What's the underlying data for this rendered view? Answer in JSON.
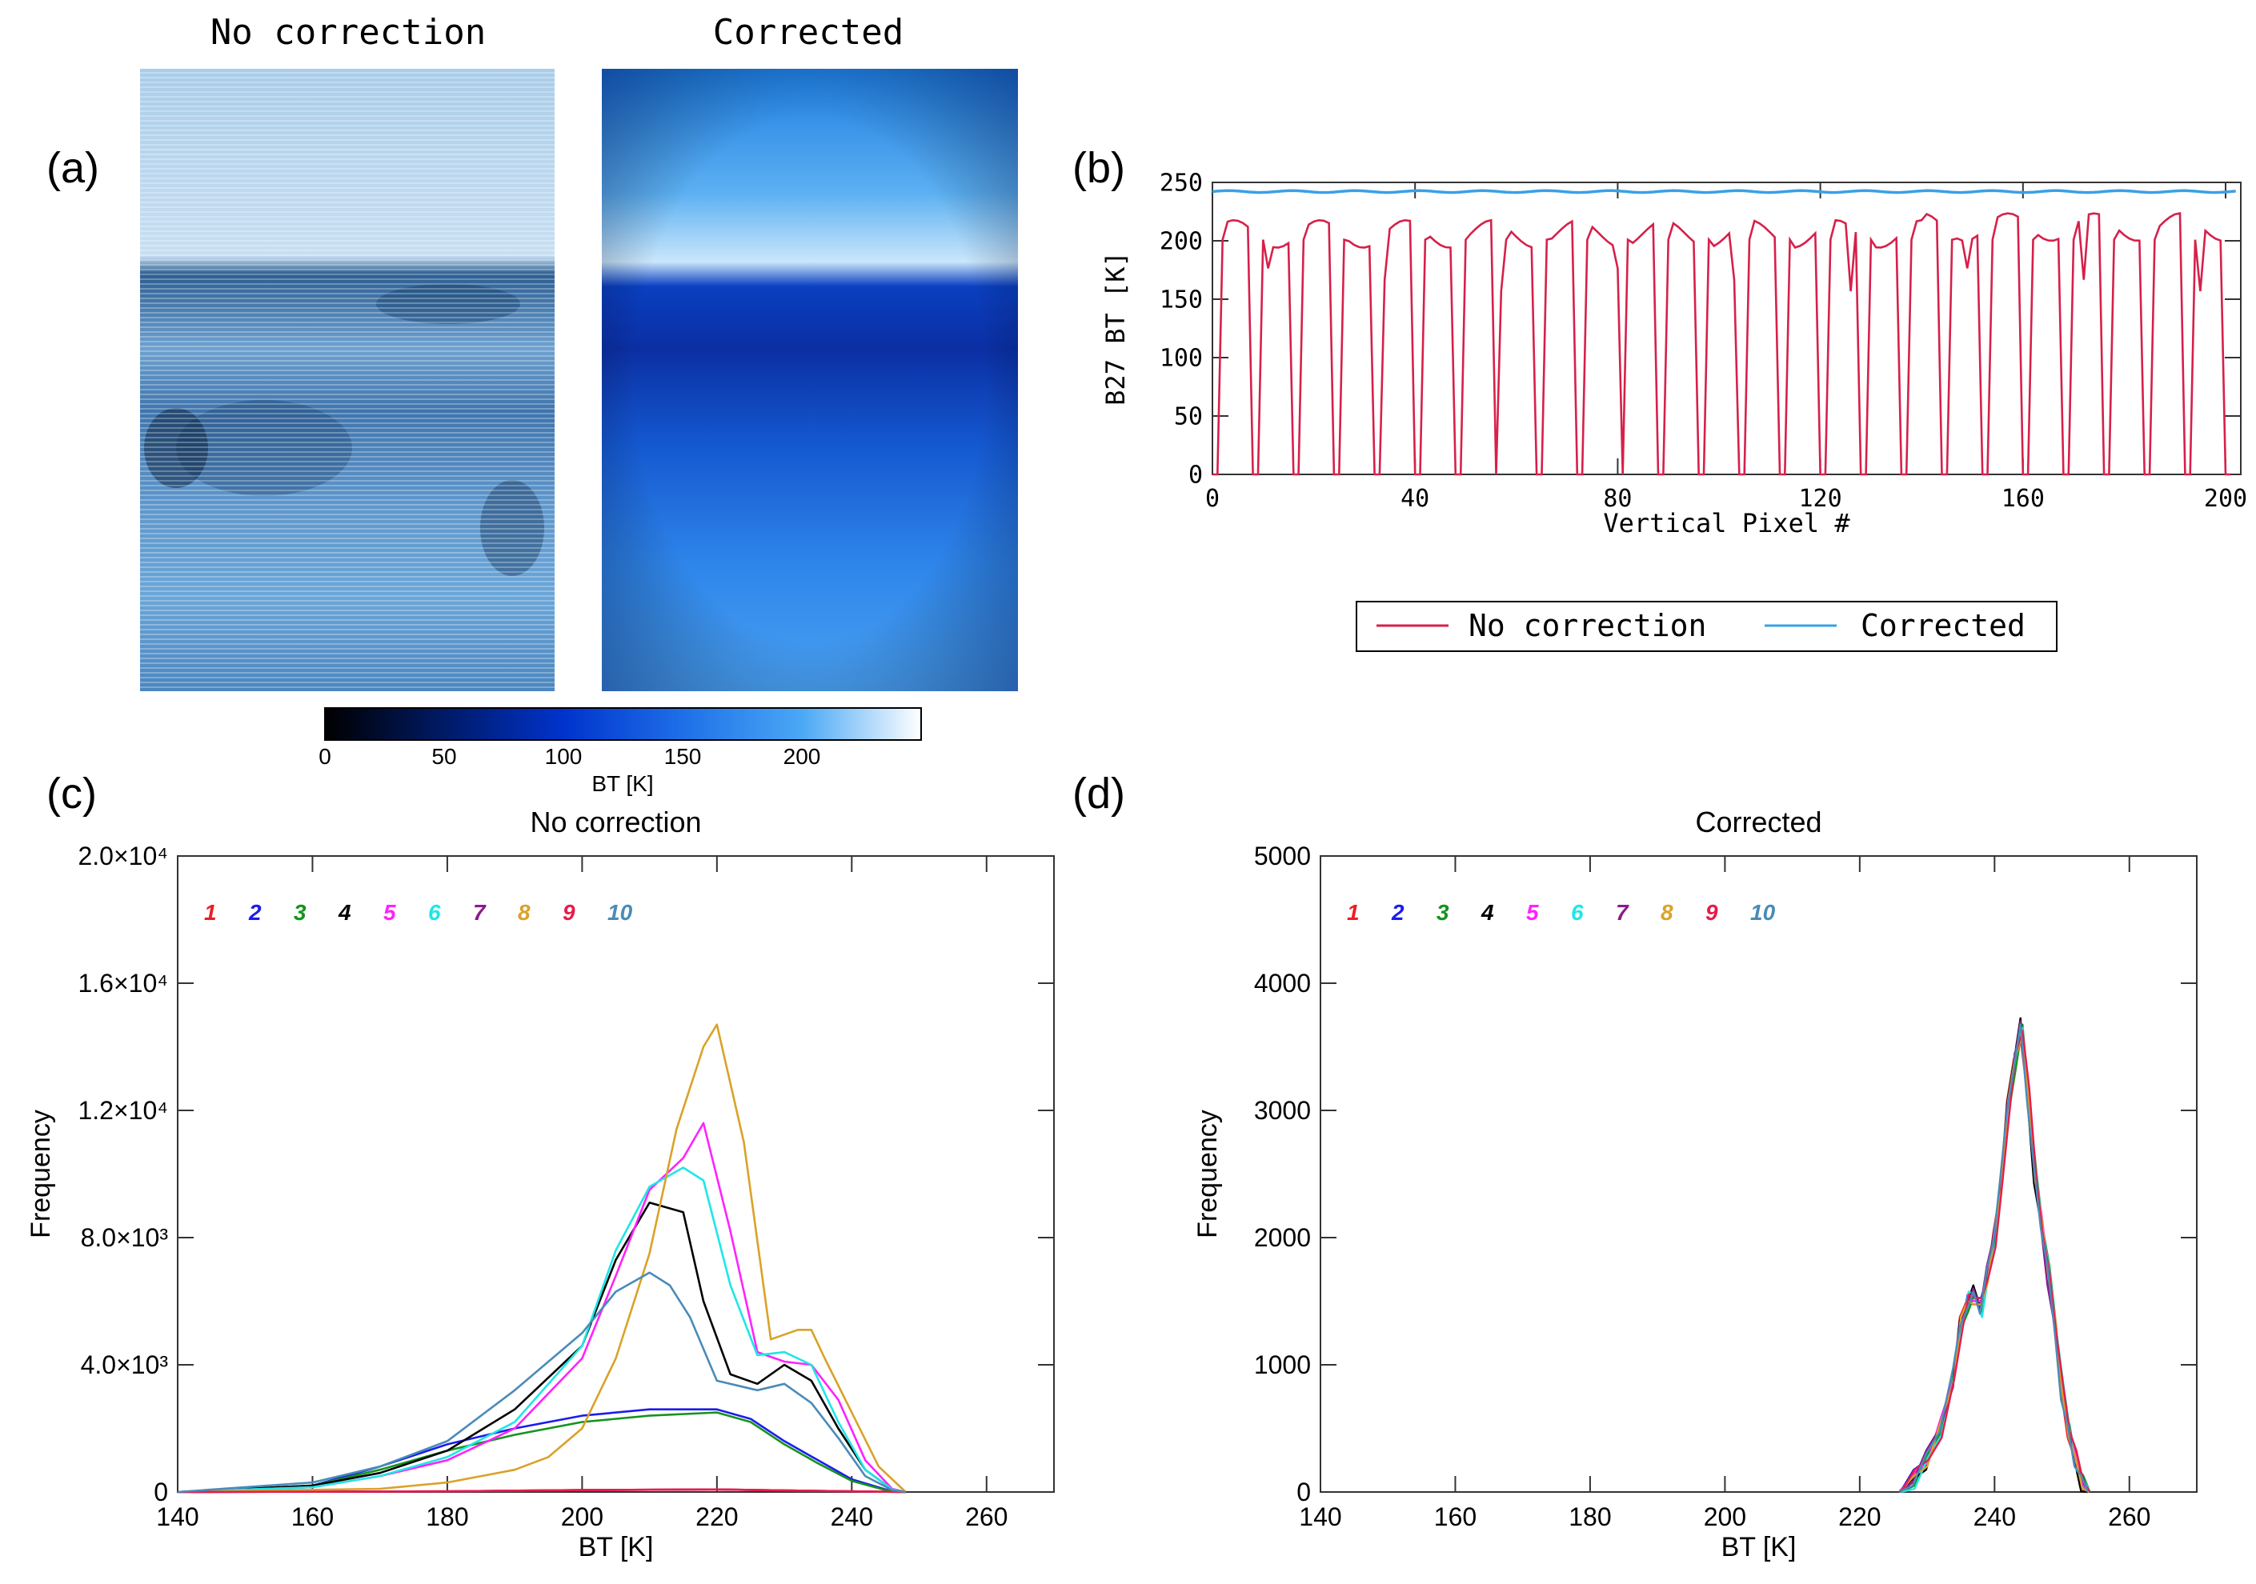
{
  "panel_labels": {
    "a": "(a)",
    "b": "(b)",
    "c": "(c)",
    "d": "(d)"
  },
  "images": {
    "left_title": "No correction",
    "right_title": "Corrected"
  },
  "colorbar": {
    "label": "BT [K]",
    "ticks": [
      "0",
      "50",
      "100",
      "150",
      "200"
    ],
    "range": [
      0,
      250
    ]
  },
  "colors": {
    "no_correction": "#d6204a",
    "corrected": "#3aa0e4",
    "series": [
      "#ee1c25",
      "#1c1cee",
      "#14931e",
      "#000000",
      "#ff22ff",
      "#1fe6e6",
      "#8b1a8b",
      "#d9a229",
      "#e61c4a",
      "#4a8bb8"
    ]
  },
  "chart_data": [
    {
      "id": "b",
      "type": "line",
      "title": "",
      "xlabel": "Vertical Pixel #",
      "ylabel": "B27 BT [K]",
      "xlim": [
        0,
        203
      ],
      "ylim": [
        0,
        255
      ],
      "xticks": [
        "0",
        "40",
        "80",
        "120",
        "160",
        "200"
      ],
      "yticks": [
        "0",
        "50",
        "100",
        "150",
        "200",
        "250"
      ],
      "legend": {
        "position": "below",
        "entries": [
          "No correction",
          "Corrected"
        ]
      },
      "series": [
        {
          "name": "No correction",
          "pattern": "periodic drop-outs: ~205-225 K plateaus alternating with drops to 0 K, period ~8 pixels"
        },
        {
          "name": "Corrected",
          "values_constant_approx": 247
        }
      ]
    },
    {
      "id": "c",
      "type": "line",
      "title": "No correction",
      "xlabel": "BT [K]",
      "ylabel": "Frequency",
      "xlim": [
        140,
        270
      ],
      "ylim": [
        0,
        20000
      ],
      "xticks": [
        "140",
        "160",
        "180",
        "200",
        "220",
        "240",
        "260"
      ],
      "yticks": [
        "0",
        "4.0×10³",
        "8.0×10³",
        "1.2×10⁴",
        "1.6×10⁴",
        "2.0×10⁴"
      ],
      "legend_entries": [
        "1",
        "2",
        "3",
        "4",
        "5",
        "6",
        "7",
        "8",
        "9",
        "10"
      ],
      "series": [
        {
          "name": "1",
          "x": [
            140,
            180,
            200,
            220,
            240,
            248
          ],
          "y": [
            0,
            20,
            60,
            80,
            20,
            0
          ]
        },
        {
          "name": "2",
          "x": [
            140,
            160,
            170,
            180,
            190,
            200,
            210,
            220,
            225,
            230,
            235,
            240,
            245,
            248
          ],
          "y": [
            0,
            200,
            800,
            1500,
            2000,
            2400,
            2600,
            2600,
            2300,
            1600,
            1000,
            400,
            80,
            0
          ]
        },
        {
          "name": "3",
          "x": [
            140,
            160,
            170,
            180,
            190,
            200,
            210,
            220,
            225,
            230,
            235,
            240,
            245,
            248
          ],
          "y": [
            0,
            200,
            700,
            1300,
            1800,
            2200,
            2400,
            2500,
            2200,
            1500,
            900,
            350,
            60,
            0
          ]
        },
        {
          "name": "4",
          "x": [
            140,
            160,
            170,
            180,
            190,
            200,
            205,
            210,
            215,
            218,
            222,
            226,
            230,
            234,
            238,
            242,
            246,
            248
          ],
          "y": [
            0,
            200,
            600,
            1300,
            2600,
            4600,
            7300,
            9100,
            8800,
            6000,
            3700,
            3400,
            4000,
            3500,
            2000,
            700,
            80,
            0
          ]
        },
        {
          "name": "5",
          "x": [
            140,
            160,
            170,
            180,
            190,
            200,
            205,
            210,
            215,
            218,
            222,
            226,
            230,
            234,
            238,
            242,
            246,
            248
          ],
          "y": [
            0,
            150,
            500,
            1000,
            2000,
            4200,
            6800,
            9500,
            10500,
            11600,
            8200,
            4400,
            4100,
            4000,
            2900,
            1000,
            100,
            0
          ]
        },
        {
          "name": "6",
          "x": [
            140,
            160,
            170,
            180,
            190,
            200,
            205,
            210,
            215,
            218,
            222,
            226,
            230,
            234,
            238,
            242,
            246,
            248
          ],
          "y": [
            0,
            150,
            500,
            1100,
            2200,
            4600,
            7600,
            9600,
            10200,
            9800,
            6500,
            4300,
            4400,
            4000,
            2200,
            700,
            80,
            0
          ]
        },
        {
          "name": "7",
          "x": [
            140,
            180,
            200,
            220,
            240,
            248
          ],
          "y": [
            0,
            20,
            60,
            80,
            20,
            0
          ]
        },
        {
          "name": "8",
          "x": [
            140,
            170,
            180,
            190,
            195,
            200,
            205,
            210,
            214,
            218,
            220,
            224,
            228,
            232,
            234,
            236,
            240,
            244,
            248
          ],
          "y": [
            0,
            100,
            300,
            700,
            1100,
            2000,
            4200,
            7500,
            11400,
            14000,
            14700,
            11000,
            4800,
            5100,
            5100,
            4200,
            2500,
            800,
            0
          ]
        },
        {
          "name": "9",
          "x": [
            140,
            180,
            200,
            220,
            240,
            248
          ],
          "y": [
            0,
            20,
            60,
            80,
            20,
            0
          ]
        },
        {
          "name": "10",
          "x": [
            140,
            160,
            170,
            180,
            190,
            200,
            205,
            210,
            213,
            216,
            220,
            226,
            230,
            234,
            238,
            242,
            246,
            248
          ],
          "y": [
            0,
            300,
            800,
            1600,
            3200,
            5000,
            6300,
            6900,
            6500,
            5500,
            3500,
            3200,
            3400,
            2800,
            1700,
            500,
            60,
            0
          ]
        }
      ]
    },
    {
      "id": "d",
      "type": "line",
      "title": "Corrected",
      "xlabel": "BT [K]",
      "ylabel": "Frequency",
      "xlim": [
        140,
        270
      ],
      "ylim": [
        0,
        5000
      ],
      "xticks": [
        "140",
        "160",
        "180",
        "200",
        "220",
        "240",
        "260"
      ],
      "yticks": [
        "0",
        "1000",
        "2000",
        "3000",
        "4000",
        "5000"
      ],
      "legend_entries": [
        "1",
        "2",
        "3",
        "4",
        "5",
        "6",
        "7",
        "8",
        "9",
        "10"
      ],
      "series_common": {
        "x": [
          226,
          228,
          230,
          232,
          234,
          235,
          236,
          237,
          238,
          239,
          240,
          241,
          242,
          243,
          244,
          245,
          246,
          247,
          248,
          249,
          250,
          251,
          252,
          253,
          254
        ],
        "y": [
          0,
          100,
          250,
          500,
          900,
          1300,
          1500,
          1550,
          1450,
          1700,
          2000,
          2400,
          3000,
          3400,
          3650,
          3100,
          2500,
          2100,
          1700,
          1300,
          800,
          500,
          250,
          80,
          0
        ]
      }
    }
  ]
}
